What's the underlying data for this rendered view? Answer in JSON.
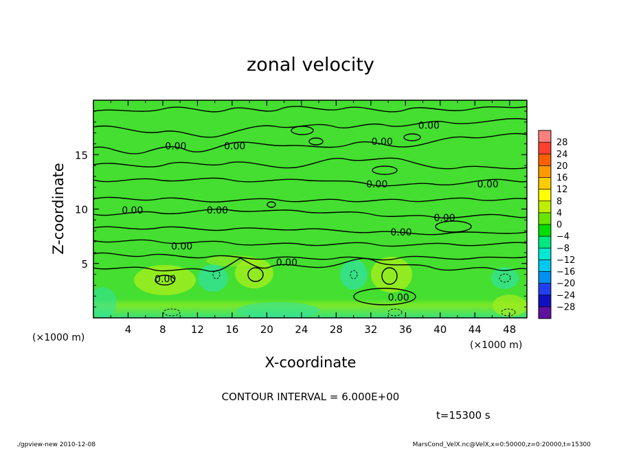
{
  "chart_data": {
    "type": "heatmap",
    "title": "zonal velocity",
    "xlabel": "X-coordinate",
    "ylabel": "Z-coordinate",
    "x_unit": "(×1000 m)",
    "y_unit": "(×1000 m)",
    "xlim": [
      0,
      50
    ],
    "ylim": [
      0,
      20
    ],
    "x_ticks": [
      4,
      8,
      12,
      16,
      20,
      24,
      28,
      32,
      36,
      40,
      44,
      48
    ],
    "y_ticks": [
      5,
      10,
      15
    ],
    "colorbar": {
      "levels": [
        28,
        24,
        20,
        16,
        12,
        8,
        4,
        0,
        -4,
        -8,
        -12,
        -16,
        -20,
        -24,
        -28
      ],
      "colors": [
        "#ff8080",
        "#ff4030",
        "#ff6000",
        "#ff9a00",
        "#ffcc00",
        "#ffff00",
        "#bfef00",
        "#66e600",
        "#00dd00",
        "#00e880",
        "#00e8d0",
        "#00c8f0",
        "#0090f0",
        "#2040f0",
        "#1010c0",
        "#6010a0"
      ]
    },
    "contour_interval": "CONTOUR INTERVAL = 6.000E+00",
    "contour_labels": [
      {
        "text": "0.00",
        "x": 9.5,
        "y": 15.8
      },
      {
        "text": "0.00",
        "x": 16.3,
        "y": 15.8
      },
      {
        "text": "0.00",
        "x": 33.3,
        "y": 16.2
      },
      {
        "text": "0.00",
        "x": 38.7,
        "y": 17.7
      },
      {
        "text": "0.00",
        "x": 32.7,
        "y": 12.3
      },
      {
        "text": "0.00",
        "x": 45.5,
        "y": 12.3
      },
      {
        "text": "0.00",
        "x": 4.5,
        "y": 9.9
      },
      {
        "text": "0.00",
        "x": 14.3,
        "y": 9.9
      },
      {
        "text": "0.00",
        "x": 40.5,
        "y": 9.2
      },
      {
        "text": "0.00",
        "x": 35.5,
        "y": 7.9
      },
      {
        "text": "0.00",
        "x": 10.2,
        "y": 6.6
      },
      {
        "text": "0.00",
        "x": 22.3,
        "y": 5.1
      },
      {
        "text": "0.00",
        "x": 8.3,
        "y": 3.6
      },
      {
        "text": "0.00",
        "x": 35.2,
        "y": 1.9
      }
    ]
  },
  "time_label": "t=15300 s",
  "footer_left": "./gpview-new  2010-12-08",
  "footer_right": "MarsCond_VelX.nc@VelX,x=0:50000,z=0:20000,t=15300"
}
